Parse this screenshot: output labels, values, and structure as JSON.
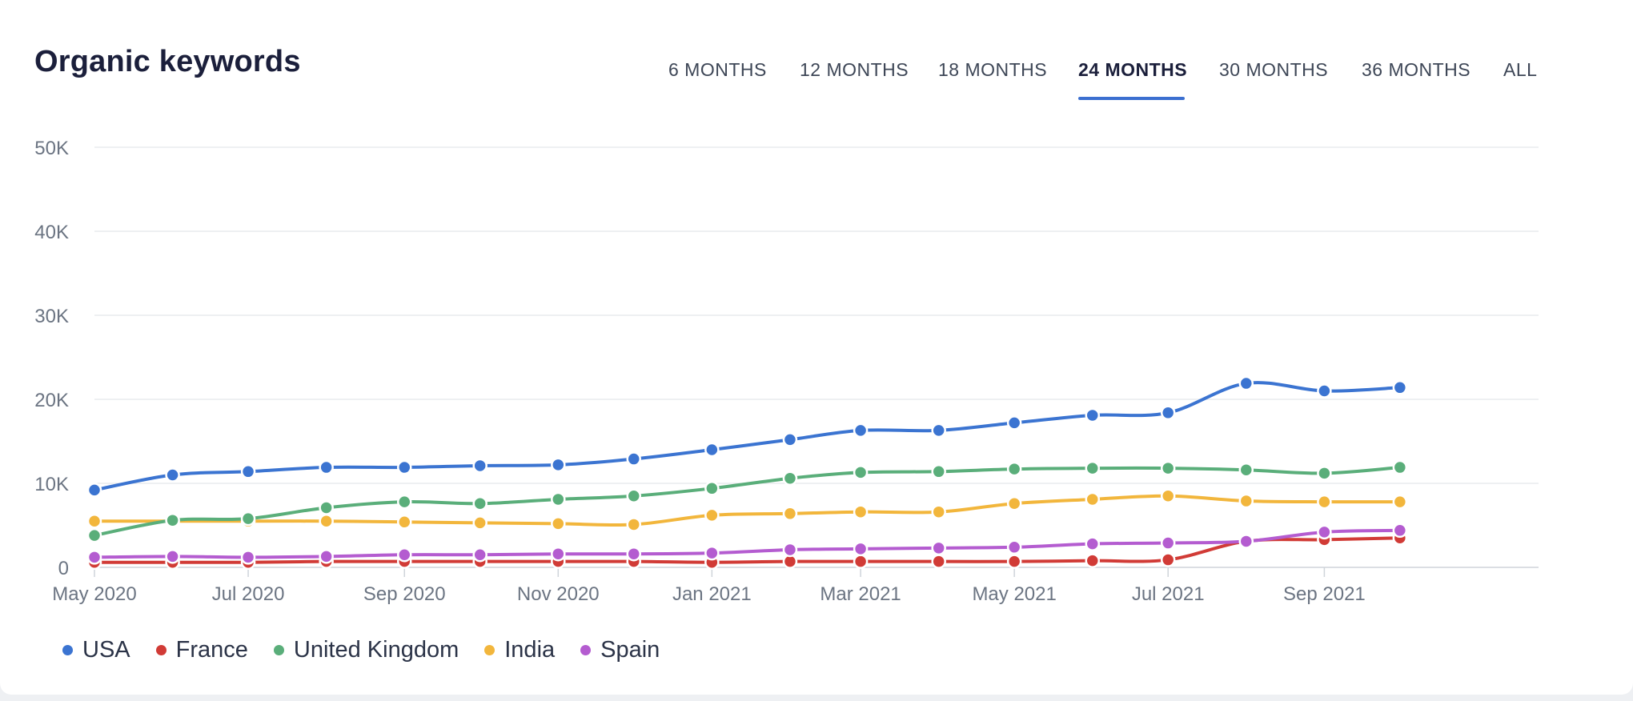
{
  "page": {
    "title": "Organic keywords"
  },
  "tabs": [
    {
      "label": "6 MONTHS",
      "active": false
    },
    {
      "label": "12 MONTHS",
      "active": false
    },
    {
      "label": "18 MONTHS",
      "active": false
    },
    {
      "label": "24 MONTHS",
      "active": true
    },
    {
      "label": "30 MONTHS",
      "active": false
    },
    {
      "label": "36 MONTHS",
      "active": false
    },
    {
      "label": "ALL",
      "active": false
    }
  ],
  "colors": {
    "accent": "#3b6fd0",
    "grid": "#e3e6ea",
    "axis_text": "#6b7482"
  },
  "chart_data": {
    "type": "line",
    "title": "Organic keywords",
    "xlabel": "",
    "ylabel": "",
    "ylim": [
      0,
      50000
    ],
    "y_ticks": [
      {
        "value": 0,
        "label": "0"
      },
      {
        "value": 10000,
        "label": "10K"
      },
      {
        "value": 20000,
        "label": "20K"
      },
      {
        "value": 30000,
        "label": "30K"
      },
      {
        "value": 40000,
        "label": "40K"
      },
      {
        "value": 50000,
        "label": "50K"
      }
    ],
    "x": [
      "2020-05-01",
      "2020-06-01",
      "2020-07-01",
      "2020-08-01",
      "2020-09-01",
      "2020-10-01",
      "2020-11-01",
      "2020-12-01",
      "2021-01-01",
      "2021-02-01",
      "2021-03-01",
      "2021-04-01",
      "2021-05-01",
      "2021-06-01",
      "2021-07-01",
      "2021-08-01",
      "2021-09-01",
      "2021-10-01"
    ],
    "x_ticks": [
      {
        "value": "2020-05-01",
        "label": "May 2020"
      },
      {
        "value": "2020-07-01",
        "label": "Jul 2020"
      },
      {
        "value": "2020-09-01",
        "label": "Sep 2020"
      },
      {
        "value": "2020-11-01",
        "label": "Nov 2020"
      },
      {
        "value": "2021-01-01",
        "label": "Jan 2021"
      },
      {
        "value": "2021-03-01",
        "label": "Mar 2021"
      },
      {
        "value": "2021-05-01",
        "label": "May 2021"
      },
      {
        "value": "2021-07-01",
        "label": "Jul 2021"
      },
      {
        "value": "2021-09-01",
        "label": "Sep 2021"
      }
    ],
    "xlim": [
      "2020-05-01",
      "2021-11-25"
    ],
    "grid": true,
    "legend": "bottom-left",
    "series": [
      {
        "name": "USA",
        "color": "#3b74d1",
        "values": [
          9200,
          11000,
          11400,
          11900,
          11900,
          12100,
          12200,
          12900,
          14000,
          15200,
          16300,
          16300,
          17200,
          18100,
          18400,
          21900,
          21000,
          21400
        ]
      },
      {
        "name": "France",
        "color": "#d13b36",
        "values": [
          600,
          600,
          600,
          700,
          700,
          700,
          700,
          700,
          600,
          700,
          700,
          700,
          700,
          800,
          900,
          3100,
          3300,
          3500
        ]
      },
      {
        "name": "United Kingdom",
        "color": "#5aae7a",
        "values": [
          3800,
          5600,
          5800,
          7100,
          7800,
          7600,
          8100,
          8500,
          9400,
          10600,
          11300,
          11400,
          11700,
          11800,
          11800,
          11600,
          11200,
          11900
        ]
      },
      {
        "name": "India",
        "color": "#f2b63c",
        "values": [
          5500,
          5500,
          5500,
          5500,
          5400,
          5300,
          5200,
          5100,
          6200,
          6400,
          6600,
          6600,
          7600,
          8100,
          8500,
          7900,
          7800,
          7800
        ]
      },
      {
        "name": "Spain",
        "color": "#b45cd0",
        "values": [
          1200,
          1300,
          1200,
          1300,
          1500,
          1500,
          1600,
          1600,
          1700,
          2100,
          2200,
          2300,
          2400,
          2800,
          2900,
          3100,
          4200,
          4400
        ]
      }
    ]
  }
}
